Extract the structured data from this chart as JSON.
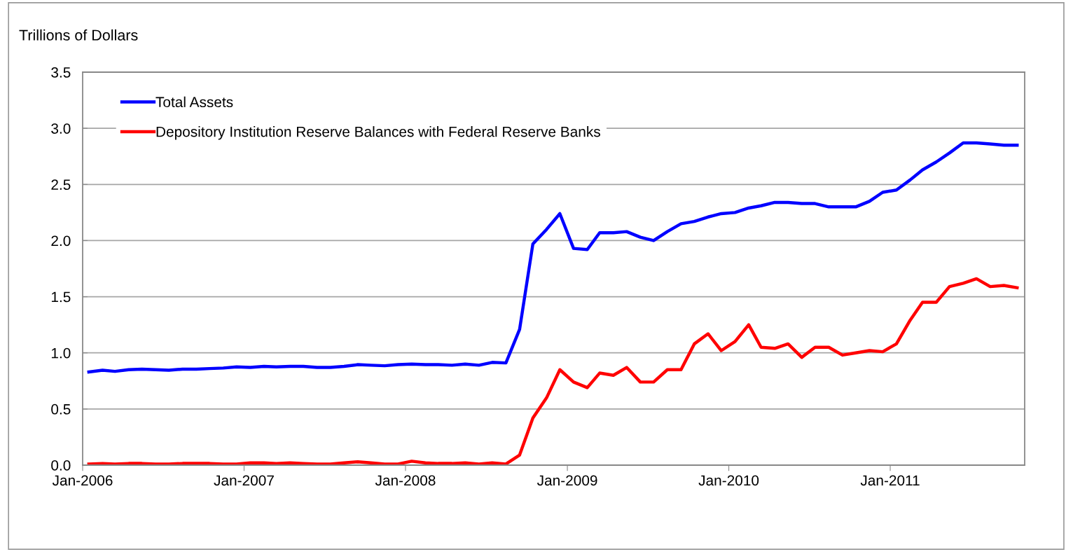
{
  "chart_data": {
    "type": "line",
    "ylabel": "Trillions of Dollars",
    "x": [
      "2006-01-15",
      "2006-02-15",
      "2006-03-15",
      "2006-04-15",
      "2006-05-15",
      "2006-06-15",
      "2006-07-15",
      "2006-08-15",
      "2006-09-15",
      "2006-10-15",
      "2006-11-15",
      "2006-12-15",
      "2007-01-15",
      "2007-02-15",
      "2007-03-15",
      "2007-04-15",
      "2007-05-15",
      "2007-06-15",
      "2007-07-15",
      "2007-08-15",
      "2007-09-15",
      "2007-10-15",
      "2007-11-15",
      "2007-12-15",
      "2008-01-15",
      "2008-02-15",
      "2008-03-15",
      "2008-04-15",
      "2008-05-15",
      "2008-06-15",
      "2008-07-15",
      "2008-08-15",
      "2008-09-15",
      "2008-10-15",
      "2008-11-15",
      "2008-12-15",
      "2009-01-15",
      "2009-02-15",
      "2009-03-15",
      "2009-04-15",
      "2009-05-15",
      "2009-06-15",
      "2009-07-15",
      "2009-08-15",
      "2009-09-15",
      "2009-10-15",
      "2009-11-15",
      "2009-12-15",
      "2010-01-15",
      "2010-02-15",
      "2010-03-15",
      "2010-04-15",
      "2010-05-15",
      "2010-06-15",
      "2010-07-15",
      "2010-08-15",
      "2010-09-15",
      "2010-10-15",
      "2010-11-15",
      "2010-12-15",
      "2011-01-15",
      "2011-02-15",
      "2011-03-15",
      "2011-04-15",
      "2011-05-15",
      "2011-06-15",
      "2011-07-15",
      "2011-08-15",
      "2011-09-15",
      "2011-10-15"
    ],
    "series": [
      {
        "name": "Total Assets",
        "color": "#0000ff",
        "values": [
          0.83,
          0.845,
          0.835,
          0.85,
          0.855,
          0.85,
          0.845,
          0.855,
          0.855,
          0.86,
          0.865,
          0.875,
          0.87,
          0.88,
          0.875,
          0.88,
          0.88,
          0.87,
          0.87,
          0.88,
          0.895,
          0.89,
          0.885,
          0.895,
          0.9,
          0.895,
          0.895,
          0.89,
          0.9,
          0.89,
          0.915,
          0.91,
          1.21,
          1.97,
          2.1,
          2.24,
          1.93,
          1.92,
          2.07,
          2.07,
          2.08,
          2.03,
          2.0,
          2.08,
          2.15,
          2.17,
          2.21,
          2.24,
          2.25,
          2.29,
          2.31,
          2.34,
          2.34,
          2.33,
          2.33,
          2.3,
          2.3,
          2.3,
          2.35,
          2.43,
          2.45,
          2.54,
          2.63,
          2.7,
          2.78,
          2.87,
          2.87,
          2.86,
          2.85,
          2.85
        ]
      },
      {
        "name": "Depository Institution Reserve Balances with Federal Reserve Banks",
        "color": "#ff0000",
        "values": [
          0.01,
          0.015,
          0.01,
          0.015,
          0.015,
          0.01,
          0.01,
          0.015,
          0.015,
          0.015,
          0.01,
          0.01,
          0.02,
          0.02,
          0.015,
          0.02,
          0.015,
          0.01,
          0.01,
          0.02,
          0.03,
          0.02,
          0.01,
          0.01,
          0.035,
          0.02,
          0.015,
          0.015,
          0.02,
          0.01,
          0.02,
          0.01,
          0.09,
          0.42,
          0.6,
          0.85,
          0.74,
          0.69,
          0.82,
          0.8,
          0.87,
          0.74,
          0.74,
          0.85,
          0.85,
          1.08,
          1.17,
          1.02,
          1.1,
          1.25,
          1.05,
          1.04,
          1.08,
          0.96,
          1.05,
          1.05,
          0.98,
          1.0,
          1.02,
          1.01,
          1.08,
          1.29,
          1.45,
          1.45,
          1.59,
          1.62,
          1.66,
          1.59,
          1.6,
          1.58
        ]
      }
    ],
    "xlim": [
      "2006-01-01",
      "2011-11-01"
    ],
    "xticks": [
      {
        "value": "2006-01-01",
        "label": "Jan-2006"
      },
      {
        "value": "2007-01-01",
        "label": "Jan-2007"
      },
      {
        "value": "2008-01-01",
        "label": "Jan-2008"
      },
      {
        "value": "2009-01-01",
        "label": "Jan-2009"
      },
      {
        "value": "2010-01-01",
        "label": "Jan-2010"
      },
      {
        "value": "2011-01-01",
        "label": "Jan-2011"
      }
    ],
    "ylim": [
      0,
      3.5
    ],
    "yticks": [
      {
        "value": 0,
        "label": "0.0"
      },
      {
        "value": 0.5,
        "label": "0.5"
      },
      {
        "value": 1,
        "label": "1.0"
      },
      {
        "value": 1.5,
        "label": "1.5"
      },
      {
        "value": 2,
        "label": "2.0"
      },
      {
        "value": 2.5,
        "label": "2.5"
      },
      {
        "value": 3,
        "label": "3.0"
      },
      {
        "value": 3.5,
        "label": "3.5"
      }
    ],
    "grid": "y",
    "legend": "top left",
    "marker": "none",
    "line_style": "solid"
  }
}
